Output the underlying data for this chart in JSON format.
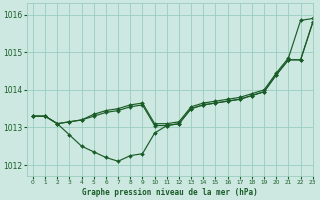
{
  "title": "Graphe pression niveau de la mer (hPa)",
  "bg_color": "#cce8e0",
  "grid_color": "#99ccbf",
  "line_color": "#1a5c28",
  "xlim": [
    -0.5,
    23
  ],
  "ylim": [
    1011.7,
    1016.3
  ],
  "yticks": [
    1012,
    1013,
    1014,
    1015,
    1016
  ],
  "xticks": [
    0,
    1,
    2,
    3,
    4,
    5,
    6,
    7,
    8,
    9,
    10,
    11,
    12,
    13,
    14,
    15,
    16,
    17,
    18,
    19,
    20,
    21,
    22,
    23
  ],
  "line1": [
    1013.3,
    1013.3,
    1013.1,
    1012.8,
    1012.5,
    1012.35,
    1012.2,
    1012.1,
    1012.25,
    1012.3,
    1012.85,
    1013.05,
    1013.1,
    1013.5,
    1013.6,
    1013.65,
    1013.7,
    1013.75,
    1013.85,
    1013.95,
    1014.4,
    1014.8,
    1014.8,
    1015.8
  ],
  "line2": [
    1013.3,
    1013.3,
    1013.1,
    1013.15,
    1013.2,
    1013.3,
    1013.4,
    1013.45,
    1013.55,
    1013.6,
    1013.05,
    1013.05,
    1013.1,
    1013.5,
    1013.6,
    1013.65,
    1013.7,
    1013.75,
    1013.85,
    1013.95,
    1014.4,
    1014.8,
    1014.8,
    1015.8
  ],
  "line3": [
    1013.3,
    1013.3,
    1013.1,
    1013.15,
    1013.2,
    1013.35,
    1013.45,
    1013.5,
    1013.6,
    1013.65,
    1013.1,
    1013.1,
    1013.15,
    1013.55,
    1013.65,
    1013.7,
    1013.75,
    1013.8,
    1013.9,
    1014.0,
    1014.45,
    1014.85,
    1015.85,
    1015.9
  ]
}
